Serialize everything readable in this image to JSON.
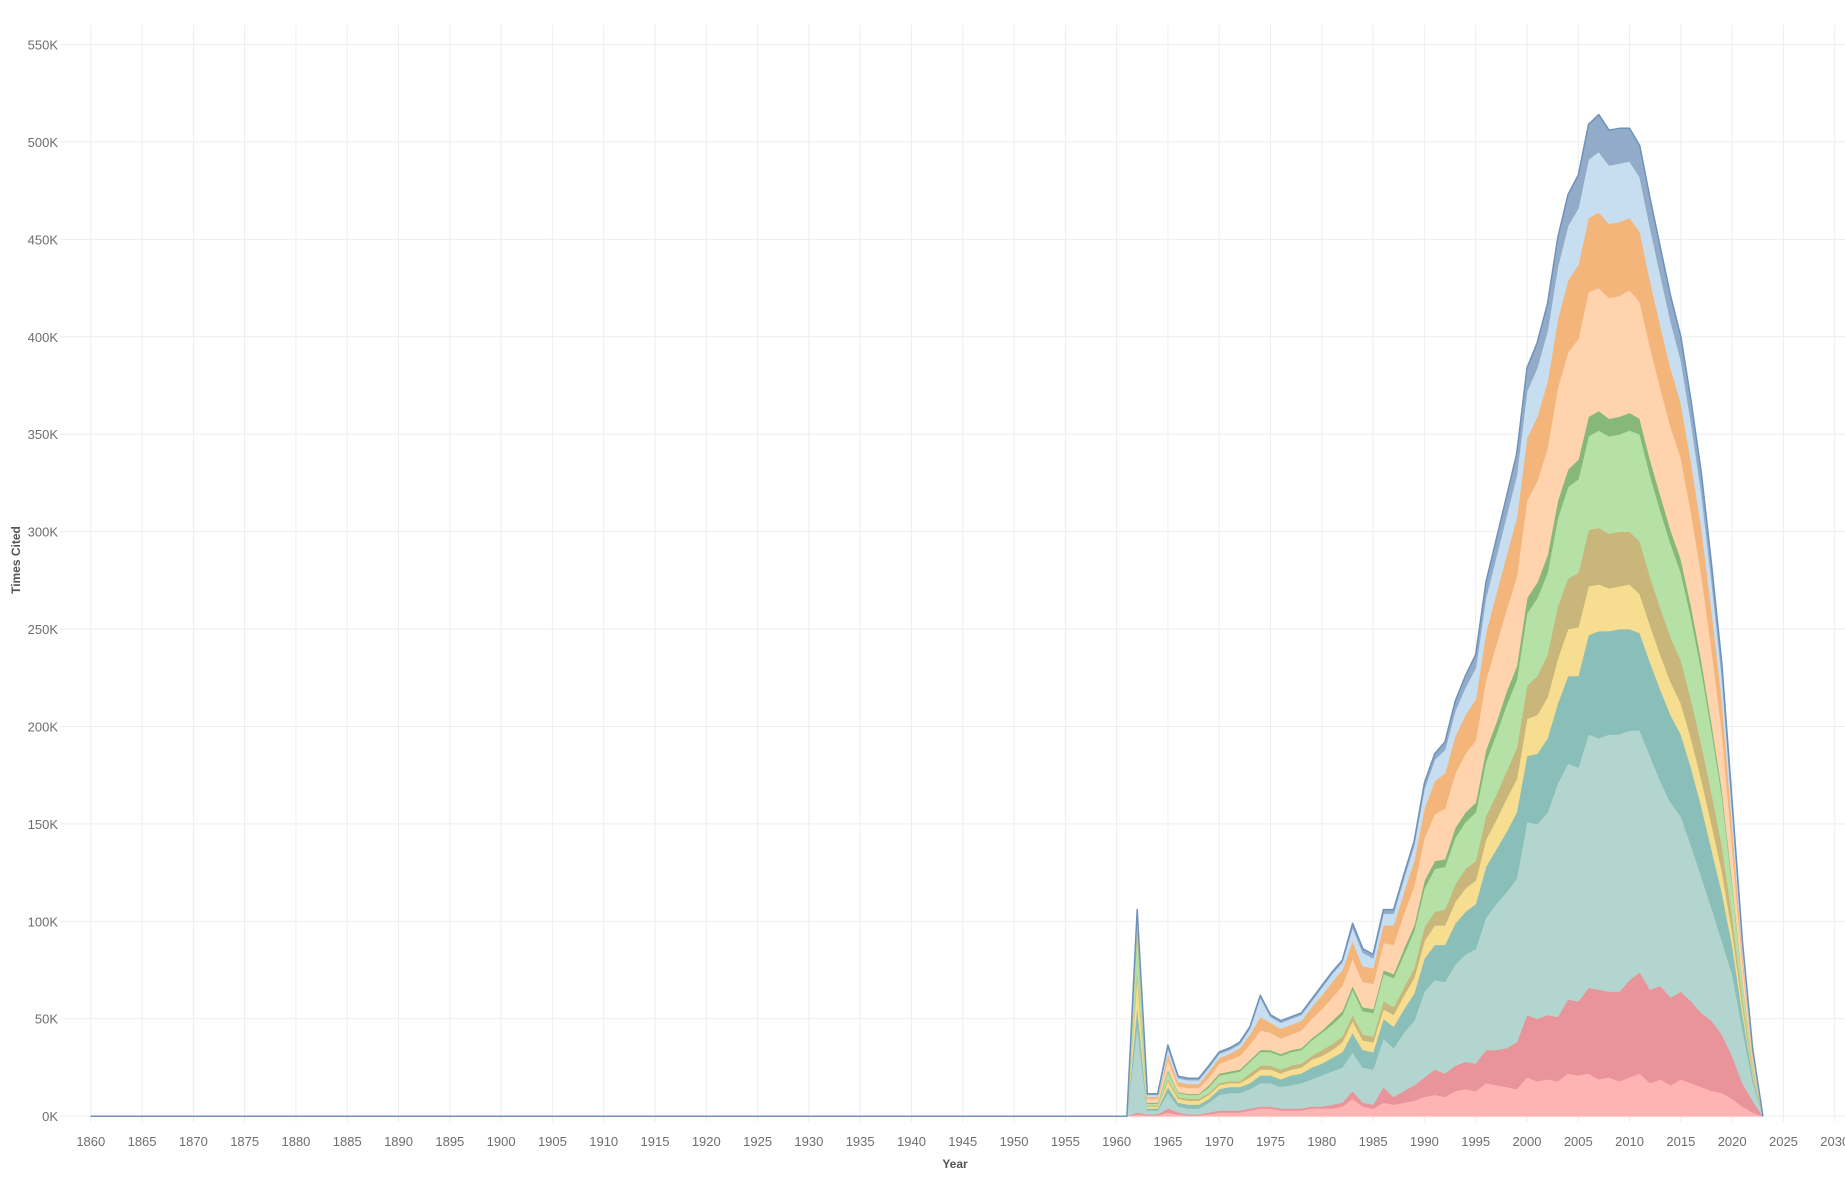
{
  "chart_data": {
    "type": "area",
    "stacked": true,
    "xlabel": "Year",
    "ylabel": "Times Cited",
    "xlim": [
      1857,
      2031
    ],
    "ylim": [
      -3000,
      560000
    ],
    "x_ticks": [
      1860,
      1865,
      1870,
      1875,
      1880,
      1885,
      1890,
      1895,
      1900,
      1905,
      1910,
      1915,
      1920,
      1925,
      1930,
      1935,
      1940,
      1945,
      1950,
      1955,
      1960,
      1965,
      1970,
      1975,
      1980,
      1985,
      1990,
      1995,
      2000,
      2005,
      2010,
      2015,
      2020,
      2025,
      2030
    ],
    "x_tick_labels": [
      "1860",
      "1865",
      "1870",
      "1875",
      "1880",
      "1885",
      "1890",
      "1895",
      "1900",
      "1905",
      "1910",
      "1915",
      "1920",
      "1925",
      "1930",
      "1935",
      "1940",
      "1945",
      "1950",
      "1955",
      "1960",
      "1965",
      "1970",
      "1975",
      "1980",
      "1985",
      "1990",
      "1995",
      "2000",
      "2005",
      "2010",
      "2015",
      "2020",
      "2025",
      "2030"
    ],
    "y_ticks": [
      0,
      50000,
      100000,
      150000,
      200000,
      250000,
      300000,
      350000,
      400000,
      450000,
      500000,
      550000
    ],
    "y_tick_labels": [
      "0K",
      "50K",
      "100K",
      "150K",
      "200K",
      "250K",
      "300K",
      "350K",
      "400K",
      "450K",
      "500K",
      "550K"
    ],
    "grid": true,
    "legend": "none",
    "colors": {
      "background": "#ffffff",
      "gridline": "#eeeeee",
      "tick_text": "#6e6e6e",
      "axis_title": "#555555"
    },
    "key_years": [
      1860,
      1866,
      1873,
      1908,
      1920,
      1935,
      1945,
      1950,
      1955,
      1958,
      1960,
      1961,
      1962,
      1963,
      1964,
      1965,
      1966,
      1967,
      1968,
      1969,
      1970,
      1971,
      1972,
      1973,
      1974,
      1975,
      1976,
      1977,
      1978,
      1979,
      1980,
      1981,
      1982,
      1983,
      1984,
      1985,
      1986,
      1987,
      1988,
      1989,
      1990,
      1991,
      1992,
      1993,
      1994,
      1995,
      1996,
      1997,
      1998,
      1999,
      2000,
      2001,
      2002,
      2003,
      2004,
      2005,
      2006,
      2007,
      2008,
      2009,
      2010,
      2011,
      2012,
      2013,
      2014,
      2015,
      2016,
      2017,
      2018,
      2019,
      2020,
      2021,
      2022,
      2023
    ],
    "series": [
      {
        "color": "#ffb3b3",
        "key_values": [
          0,
          0,
          0,
          0,
          0,
          0,
          0,
          0,
          0,
          0,
          0,
          0,
          1000,
          500,
          500,
          2000,
          1000,
          500,
          500,
          1000,
          2000,
          2000,
          2000,
          3000,
          4000,
          4000,
          3000,
          3000,
          3000,
          4000,
          4000,
          4000,
          5000,
          9000,
          5000,
          4000,
          7000,
          6000,
          7000,
          8000,
          10000,
          11000,
          10000,
          13000,
          14000,
          13000,
          17000,
          16000,
          15000,
          14000,
          20000,
          18000,
          19000,
          18000,
          22000,
          21000,
          22000,
          19000,
          20000,
          18000,
          20000,
          22000,
          17000,
          19000,
          16000,
          19000,
          17000,
          15000,
          13000,
          12000,
          9000,
          5000,
          2000,
          0
        ]
      },
      {
        "color": "#e8949a",
        "key_values": [
          0,
          0,
          0,
          0,
          0,
          0,
          0,
          0,
          0,
          0,
          0,
          0,
          1000,
          500,
          500,
          2000,
          1000,
          500,
          500,
          1000,
          1000,
          1000,
          1000,
          1000,
          1000,
          1000,
          1000,
          1000,
          1000,
          1000,
          1000,
          2000,
          2000,
          4000,
          2000,
          2000,
          8000,
          4000,
          6000,
          8000,
          10000,
          13000,
          12000,
          13000,
          14000,
          14000,
          17000,
          18000,
          20000,
          24000,
          32000,
          32000,
          33000,
          33000,
          38000,
          38000,
          44000,
          46000,
          44000,
          46000,
          50000,
          52000,
          48000,
          48000,
          45000,
          45000,
          42000,
          38000,
          36000,
          30000,
          22000,
          12000,
          6000,
          0
        ]
      },
      {
        "color": "#b3d5cf",
        "key_values": [
          0,
          0,
          0,
          0,
          0,
          0,
          0,
          0,
          0,
          0,
          0,
          0,
          45000,
          2000,
          2000,
          8000,
          3000,
          3000,
          3000,
          5000,
          8000,
          9000,
          9000,
          10000,
          12000,
          12000,
          11000,
          12000,
          13000,
          14000,
          16000,
          17000,
          18000,
          20000,
          18000,
          18000,
          25000,
          25000,
          30000,
          33000,
          44000,
          46000,
          47000,
          52000,
          55000,
          59000,
          68000,
          75000,
          80000,
          84000,
          99000,
          100000,
          104000,
          120000,
          121000,
          120000,
          130000,
          129000,
          132000,
          132000,
          128000,
          124000,
          120000,
          105000,
          100000,
          90000,
          80000,
          70000,
          58000,
          48000,
          42000,
          28000,
          10000,
          0
        ]
      },
      {
        "color": "#8abeb8",
        "key_values": [
          0,
          0,
          0,
          0,
          0,
          0,
          0,
          0,
          0,
          0,
          0,
          0,
          10000,
          1000,
          1000,
          3000,
          2000,
          2000,
          2000,
          2000,
          3000,
          3000,
          3000,
          3000,
          4000,
          4000,
          4000,
          5000,
          5000,
          6000,
          6000,
          7000,
          8000,
          10000,
          9000,
          9000,
          10000,
          11000,
          12000,
          14000,
          17000,
          18000,
          19000,
          21000,
          22000,
          23000,
          26000,
          28000,
          31000,
          34000,
          34000,
          36000,
          38000,
          41000,
          45000,
          47000,
          51000,
          55000,
          53000,
          54000,
          52000,
          50000,
          48000,
          47000,
          45000,
          42000,
          40000,
          36000,
          30000,
          25000,
          15000,
          8000,
          3000,
          0
        ]
      },
      {
        "color": "#f6dd8f",
        "key_values": [
          0,
          0,
          0,
          0,
          0,
          0,
          0,
          0,
          0,
          0,
          0,
          0,
          15000,
          1000,
          1000,
          3000,
          2000,
          2000,
          2000,
          2000,
          2000,
          2000,
          2000,
          3000,
          3000,
          3000,
          3000,
          3000,
          3000,
          4000,
          4000,
          4000,
          5000,
          6000,
          5000,
          5000,
          5000,
          6000,
          7000,
          8000,
          9000,
          10000,
          10000,
          11000,
          12000,
          12000,
          14000,
          15000,
          17000,
          17000,
          19000,
          20000,
          21000,
          23000,
          24000,
          25000,
          25000,
          24000,
          22000,
          22000,
          23000,
          20000,
          19000,
          18000,
          17000,
          16000,
          15000,
          14000,
          13000,
          11000,
          7000,
          4000,
          1500,
          0
        ]
      },
      {
        "color": "#c9b67a",
        "key_values": [
          0,
          0,
          0,
          0,
          0,
          0,
          0,
          0,
          0,
          0,
          0,
          0,
          4000,
          500,
          500,
          1000,
          1000,
          1000,
          1000,
          1000,
          1000,
          1000,
          1000,
          2000,
          2000,
          2000,
          2000,
          2000,
          2000,
          2000,
          3000,
          3000,
          3000,
          3000,
          3000,
          3000,
          4000,
          4000,
          4000,
          5000,
          7000,
          7000,
          8000,
          9000,
          10000,
          10000,
          12000,
          13000,
          14000,
          16000,
          17000,
          20000,
          22000,
          27000,
          26000,
          28000,
          29000,
          29000,
          28000,
          28000,
          27000,
          27000,
          25000,
          24000,
          23000,
          22000,
          20000,
          18000,
          16000,
          13000,
          8000,
          4000,
          1500,
          0
        ]
      },
      {
        "color": "#b5e0a6",
        "key_values": [
          0,
          0,
          0,
          0,
          0,
          0,
          0,
          0,
          0,
          0,
          0,
          0,
          20000,
          1000,
          1000,
          4000,
          2000,
          2000,
          2000,
          3000,
          4000,
          4000,
          5000,
          6000,
          7000,
          7000,
          7000,
          7000,
          7000,
          8000,
          9000,
          10000,
          11000,
          13000,
          12000,
          12000,
          14000,
          15000,
          17000,
          19000,
          20000,
          22000,
          22000,
          24000,
          24000,
          25000,
          28000,
          31000,
          34000,
          35000,
          37000,
          40000,
          42000,
          45000,
          47000,
          48000,
          48000,
          50000,
          50000,
          50000,
          52000,
          55000,
          52000,
          50000,
          48000,
          45000,
          42000,
          38000,
          32000,
          26000,
          16000,
          8000,
          3000,
          0
        ]
      },
      {
        "color": "#86b87a",
        "key_values": [
          0,
          0,
          0,
          0,
          0,
          0,
          0,
          0,
          0,
          0,
          0,
          0,
          3000,
          500,
          500,
          1000,
          500,
          500,
          500,
          1000,
          1000,
          1000,
          1000,
          1000,
          1000,
          1000,
          1000,
          1000,
          1000,
          1000,
          1000,
          2000,
          2000,
          2000,
          2000,
          2000,
          2000,
          2000,
          3000,
          3000,
          4000,
          4000,
          4000,
          5000,
          5000,
          5000,
          6000,
          6000,
          7000,
          7000,
          8000,
          8000,
          9000,
          9000,
          9000,
          10000,
          10000,
          10000,
          9000,
          9000,
          9000,
          8000,
          8000,
          8000,
          7000,
          7000,
          6000,
          5000,
          4000,
          3000,
          2000,
          1000,
          500,
          0
        ]
      },
      {
        "color": "#ffd3ad",
        "key_values": [
          0,
          0,
          0,
          0,
          0,
          0,
          0,
          0,
          0,
          0,
          0,
          0,
          3000,
          2000,
          2000,
          5000,
          3000,
          3000,
          3000,
          4000,
          5000,
          6000,
          7000,
          8000,
          10000,
          9000,
          8000,
          8000,
          9000,
          10000,
          11000,
          12000,
          13000,
          14000,
          13000,
          13000,
          14000,
          15000,
          18000,
          20000,
          22000,
          24000,
          26000,
          28000,
          30000,
          32000,
          36000,
          40000,
          42000,
          46000,
          50000,
          52000,
          55000,
          58000,
          60000,
          62000,
          64000,
          63000,
          62000,
          62000,
          63000,
          60000,
          58000,
          55000,
          53000,
          52000,
          48000,
          44000,
          38000,
          30000,
          18000,
          9000,
          3000,
          0
        ]
      },
      {
        "color": "#f3b57a",
        "key_values": [
          0,
          0,
          0,
          0,
          0,
          0,
          0,
          0,
          0,
          0,
          0,
          0,
          2000,
          1000,
          1000,
          3000,
          2000,
          2000,
          2000,
          3000,
          3000,
          3000,
          4000,
          5000,
          7000,
          5000,
          5000,
          5000,
          5000,
          6000,
          7000,
          8000,
          8000,
          9000,
          8000,
          8000,
          9000,
          10000,
          11000,
          13000,
          15000,
          17000,
          18000,
          19000,
          20000,
          21000,
          24000,
          26000,
          28000,
          30000,
          32000,
          33000,
          34000,
          35000,
          37000,
          38000,
          38000,
          39000,
          38000,
          38000,
          37000,
          36000,
          34000,
          32000,
          30000,
          28000,
          26000,
          24000,
          20000,
          16000,
          10000,
          5000,
          2000,
          0
        ]
      },
      {
        "color": "#c6def0",
        "key_values": [
          0,
          0,
          0,
          0,
          0,
          0,
          0,
          0,
          0,
          0,
          0,
          0,
          1000,
          1000,
          1000,
          3000,
          2000,
          2000,
          2000,
          2000,
          2000,
          2000,
          2000,
          3000,
          10000,
          3000,
          3000,
          3000,
          3000,
          3000,
          4000,
          4000,
          4000,
          7000,
          7000,
          5000,
          6000,
          6000,
          7000,
          8000,
          10000,
          11000,
          12000,
          13000,
          14000,
          16000,
          18000,
          19000,
          20000,
          22000,
          24000,
          25000,
          26000,
          27000,
          28000,
          29000,
          30000,
          31000,
          30000,
          30000,
          29000,
          28000,
          27000,
          26000,
          24000,
          22000,
          20000,
          18000,
          15000,
          12000,
          8000,
          4000,
          1500,
          0
        ]
      },
      {
        "color": "#92abc9",
        "key_values": [
          0,
          0,
          0,
          0,
          0,
          0,
          0,
          0,
          0,
          0,
          0,
          0,
          1000,
          500,
          500,
          1500,
          1000,
          1000,
          1000,
          1000,
          1000,
          1000,
          1000,
          1000,
          1000,
          1000,
          1000,
          1000,
          1000,
          1000,
          1000,
          1000,
          1000,
          2000,
          2000,
          2000,
          2000,
          2000,
          2000,
          2000,
          3000,
          3000,
          4000,
          5000,
          6000,
          7000,
          8000,
          9000,
          10000,
          11000,
          12000,
          13000,
          14000,
          15000,
          16000,
          17000,
          18000,
          19000,
          18000,
          18000,
          17000,
          16000,
          15000,
          14000,
          13000,
          12000,
          11000,
          10000,
          8000,
          6000,
          4000,
          2000,
          500,
          0
        ]
      }
    ]
  }
}
